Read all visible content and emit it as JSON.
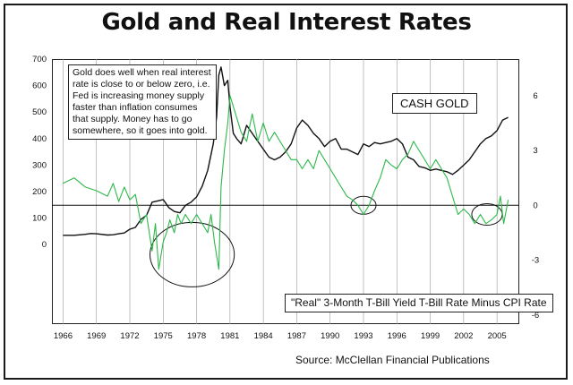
{
  "chart_data": {
    "type": "line",
    "title": "Gold and Real Interest Rates",
    "annotation": "Gold does well when real interest rate is close to or below zero, i.e. Fed is increasing money supply faster than inflation consumes that supply.  Money has to go somewhere, so it goes into gold.",
    "source": "Source: McClellan Financial Publications",
    "x_ticks": [
      "1966",
      "1969",
      "1972",
      "1975",
      "1978",
      "1981",
      "1984",
      "1987",
      "1990",
      "1993",
      "1996",
      "1999",
      "2002",
      "2005"
    ],
    "xlim": [
      1965.0,
      2007.0
    ],
    "y_left_ticks": [
      "700",
      "600",
      "500",
      "400",
      "300",
      "200",
      "100",
      "0"
    ],
    "ylim_left": [
      -300,
      700
    ],
    "y_right_ticks": [
      "6",
      "3",
      "0",
      "-3",
      "-6"
    ],
    "ylim_right": [
      -6.5,
      8.0
    ],
    "series": [
      {
        "name": "CASH GOLD",
        "axis": "left",
        "color": "#111111",
        "x": [
          1966,
          1967,
          1968,
          1968.5,
          1969,
          1970,
          1970.5,
          1971,
          1971.5,
          1972,
          1972.5,
          1973,
          1973.5,
          1974,
          1974.5,
          1975,
          1975.5,
          1976,
          1976.5,
          1977,
          1977.5,
          1978,
          1978.5,
          1979,
          1979.5,
          1979.8,
          1980,
          1980.2,
          1980.5,
          1980.8,
          1981,
          1981.3,
          1981.6,
          1982,
          1982.5,
          1983,
          1983.5,
          1984,
          1984.5,
          1985,
          1985.5,
          1986,
          1986.5,
          1987,
          1987.5,
          1988,
          1988.5,
          1989,
          1989.5,
          1990,
          1990.5,
          1991,
          1991.5,
          1992,
          1992.5,
          1993,
          1993.5,
          1994,
          1994.5,
          1995,
          1995.5,
          1996,
          1996.5,
          1997,
          1997.5,
          1998,
          1998.5,
          1999,
          1999.5,
          2000,
          2000.5,
          2001,
          2001.5,
          2002,
          2002.5,
          2003,
          2003.5,
          2004,
          2004.5,
          2005,
          2005.5,
          2006
        ],
        "values": [
          35,
          35,
          39,
          42,
          41,
          36,
          37,
          41,
          44,
          58,
          65,
          95,
          110,
          160,
          165,
          170,
          140,
          125,
          120,
          148,
          160,
          180,
          220,
          280,
          380,
          480,
          640,
          670,
          600,
          620,
          520,
          420,
          400,
          380,
          450,
          420,
          390,
          360,
          330,
          320,
          330,
          350,
          380,
          440,
          470,
          450,
          420,
          400,
          370,
          390,
          400,
          360,
          360,
          350,
          340,
          380,
          370,
          385,
          380,
          385,
          390,
          400,
          380,
          330,
          320,
          295,
          290,
          280,
          285,
          280,
          275,
          265,
          280,
          300,
          320,
          350,
          380,
          400,
          410,
          430,
          470,
          480
        ]
      },
      {
        "name": "\"Real\" 3-Month T-Bill Yield T-Bill Rate Minus CPI Rate",
        "axis": "right",
        "color": "#2db84a",
        "x": [
          1966,
          1967,
          1968,
          1969,
          1970,
          1970.5,
          1971,
          1971.5,
          1972,
          1972.5,
          1973,
          1973.5,
          1974,
          1974.3,
          1974.6,
          1975,
          1975.3,
          1975.6,
          1976,
          1976.3,
          1976.6,
          1977,
          1977.5,
          1978,
          1978.5,
          1979,
          1979.3,
          1979.6,
          1980,
          1980.2,
          1980.5,
          1980.8,
          1981,
          1981.5,
          1982,
          1982.5,
          1983,
          1983.5,
          1984,
          1984.5,
          1985,
          1985.5,
          1986,
          1986.5,
          1987,
          1987.5,
          1988,
          1988.5,
          1989,
          1989.5,
          1990,
          1990.5,
          1991,
          1991.5,
          1992,
          1992.5,
          1993,
          1993.5,
          1994,
          1994.5,
          1995,
          1995.5,
          1996,
          1996.5,
          1997,
          1997.5,
          1998,
          1998.5,
          1999,
          1999.5,
          2000,
          2000.5,
          2001,
          2001.5,
          2002,
          2002.5,
          2003,
          2003.5,
          2004,
          2004.5,
          2005,
          2005.3,
          2005.6,
          2006
        ],
        "values": [
          1.2,
          1.5,
          1.0,
          0.8,
          0.5,
          1.2,
          0.2,
          1.0,
          0.3,
          0.6,
          -1.0,
          -0.5,
          -2.5,
          -1.0,
          -3.5,
          -2.0,
          -1.5,
          -0.8,
          -1.5,
          -0.5,
          -1.0,
          -0.5,
          -1.0,
          -0.5,
          -1.0,
          -1.5,
          -0.5,
          -2.0,
          -3.5,
          1.0,
          3.0,
          4.5,
          6.0,
          5.0,
          4.0,
          3.5,
          5.0,
          3.5,
          4.5,
          3.5,
          4.0,
          3.5,
          3.0,
          2.5,
          2.5,
          2.0,
          2.5,
          2.0,
          3.0,
          2.5,
          2.0,
          1.5,
          1.0,
          0.5,
          0.3,
          0.0,
          -0.5,
          0.0,
          0.8,
          1.5,
          2.5,
          2.2,
          2.0,
          2.5,
          2.8,
          3.5,
          3.0,
          2.5,
          2.0,
          2.5,
          2.0,
          1.5,
          0.5,
          -0.5,
          -0.2,
          -0.5,
          -1.0,
          -0.5,
          -1.0,
          -0.8,
          -0.5,
          0.5,
          -1.0,
          0.3
        ]
      }
    ]
  }
}
